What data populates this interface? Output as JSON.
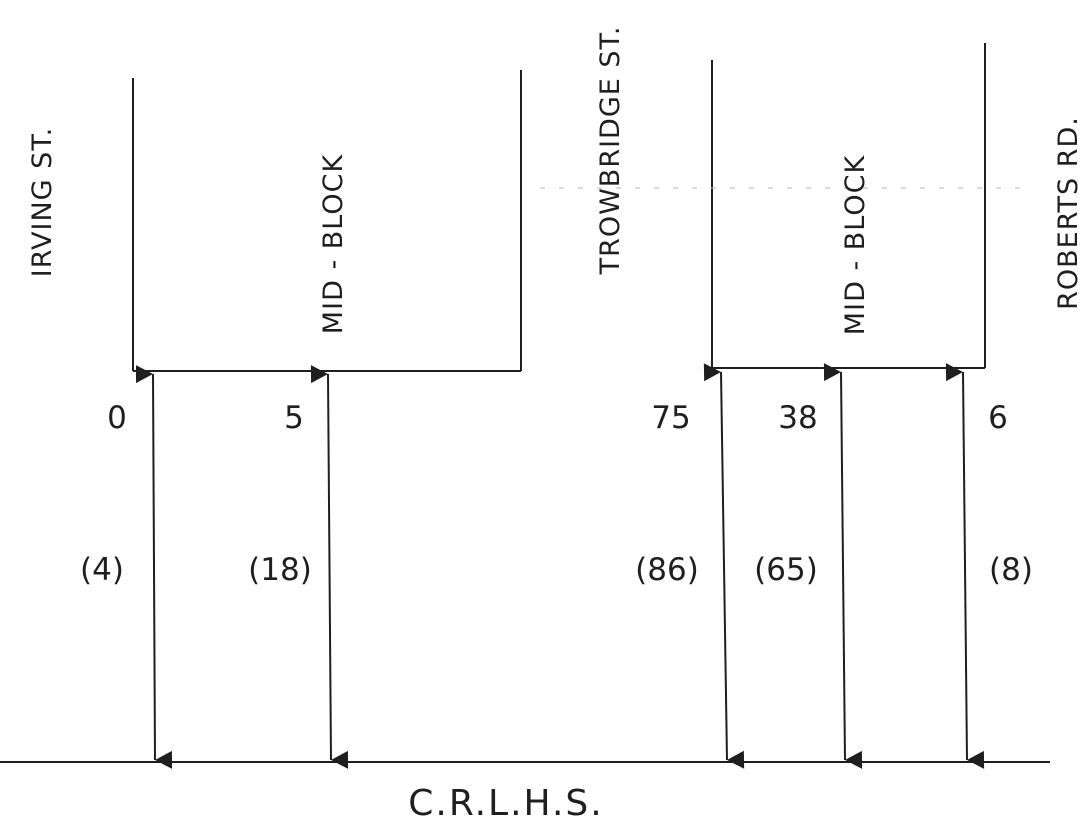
{
  "streets": {
    "irving": "IRVING ST.",
    "trowbridge": "TROWBRIDGE ST.",
    "roberts": "ROBERTS RD."
  },
  "midblock": {
    "left": "MID - BLOCK",
    "right": "MID - BLOCK"
  },
  "school": "C.R.L.H.S.",
  "crossings": [
    {
      "count": "0",
      "paren": "(4)"
    },
    {
      "count": "5",
      "paren": "(18)"
    },
    {
      "count": "75",
      "paren": "(86)"
    },
    {
      "count": "38",
      "paren": "(65)"
    },
    {
      "count": "6",
      "paren": "(8)"
    }
  ],
  "colors": {
    "ink": "#1f1f1f",
    "background": "#ffffff"
  }
}
